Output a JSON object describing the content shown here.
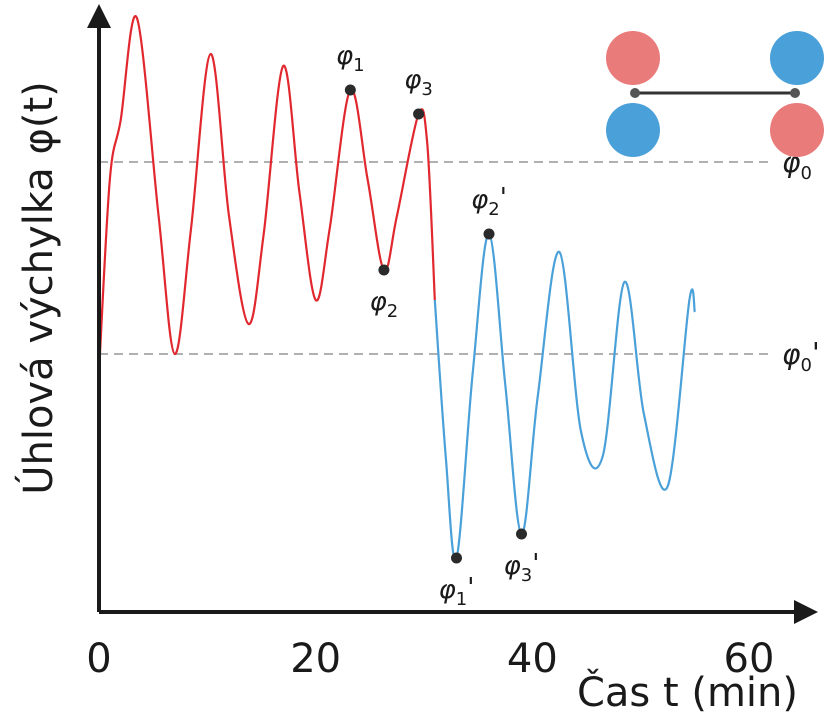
{
  "chart_data": {
    "type": "line",
    "xlabel": "Čas t (min)",
    "ylabel": "Úhlová výchylka φ(t)",
    "xlim": [
      0,
      65
    ],
    "ylim": [
      0,
      100
    ],
    "x_ticks": [
      "0",
      "20",
      "40",
      "60"
    ],
    "x_tick_values": [
      0,
      20,
      40,
      60
    ],
    "reference_lines": [
      {
        "label": "φ",
        "sub": "0",
        "prime": "",
        "y": 75
      },
      {
        "label": "φ",
        "sub": "0",
        "prime": "'",
        "y": 43
      }
    ],
    "markers": [
      {
        "label": "φ",
        "sub": "1",
        "prime": "",
        "x": 23.2,
        "y": 87,
        "anchor": "above"
      },
      {
        "label": "φ",
        "sub": "2",
        "prime": "",
        "x": 26.3,
        "y": 57,
        "anchor": "below"
      },
      {
        "label": "φ",
        "sub": "3",
        "prime": "",
        "x": 29.5,
        "y": 83,
        "anchor": "above"
      },
      {
        "label": "φ",
        "sub": "1",
        "prime": "'",
        "x": 33.0,
        "y": 9,
        "anchor": "below"
      },
      {
        "label": "φ",
        "sub": "2",
        "prime": "'",
        "x": 36.0,
        "y": 63,
        "anchor": "above"
      },
      {
        "label": "φ",
        "sub": "3",
        "prime": "'",
        "x": 39.0,
        "y": 13,
        "anchor": "below"
      }
    ],
    "series": [
      {
        "color": "#e0282e",
        "x": [
          0,
          1,
          2,
          3.5,
          5.5,
          7,
          8.5,
          10.3,
          12,
          13.8,
          15.2,
          17,
          18.5,
          20,
          21.3,
          23.2,
          24.8,
          26.3,
          27.5,
          29.5,
          30.3,
          31
        ],
        "y": [
          40,
          72,
          82,
          99,
          66,
          43,
          64,
          93,
          66,
          48,
          63,
          91,
          70,
          52,
          64,
          87,
          72,
          57,
          66,
          83,
          78,
          52
        ]
      },
      {
        "color": "#4aa0d8",
        "x": [
          31,
          32,
          33,
          34.5,
          36,
          37.5,
          39,
          40.5,
          42.5,
          44.5,
          46.5,
          48.5,
          50.3,
          52.5,
          54.5,
          55
        ],
        "y": [
          52,
          26,
          9,
          40,
          63,
          38,
          13,
          36,
          60,
          30,
          26,
          55,
          33,
          21,
          52,
          50
        ]
      }
    ]
  },
  "icon": {
    "name": "dumbbell-pair",
    "colors": [
      "#e97b7b",
      "#4aa0d8",
      "#4aa0d8",
      "#e97b7b"
    ],
    "bar_color": "#333333",
    "pivot_color": "#555555"
  }
}
